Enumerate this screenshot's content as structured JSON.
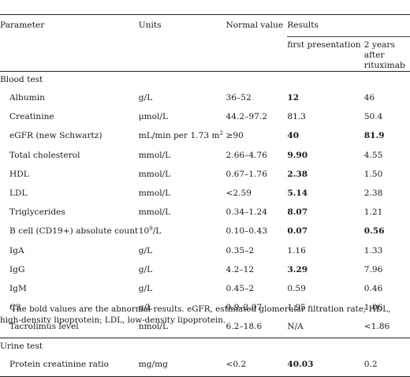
{
  "header": {
    "parameter": "Parameter",
    "units": "Units",
    "normal_value": "Normal value",
    "results": "Results",
    "first_presentation": "first presentation",
    "two_years_after": "2 years after rituximab"
  },
  "sections": [
    {
      "title": "Blood test",
      "rows": [
        {
          "parameter": "Albumin",
          "unit": "g/L",
          "normal": "36–52",
          "first": "12",
          "first_bold": true,
          "after": "46",
          "after_bold": false
        },
        {
          "parameter": "Creatinine",
          "unit": "μmol/L",
          "normal": "44.2–97.2",
          "first": "81.3",
          "first_bold": false,
          "after": "50.4",
          "after_bold": false
        },
        {
          "parameter": "eGFR (new Schwartz)",
          "unit": "mL/min per 1.73 m",
          "unit_sup": "2",
          "normal": "≥90",
          "first": "40",
          "first_bold": true,
          "after": "81.9",
          "after_bold": true
        },
        {
          "parameter": "Total cholesterol",
          "unit": "mmol/L",
          "normal": "2.66–4.76",
          "first": "9.90",
          "first_bold": true,
          "after": "4.55",
          "after_bold": false
        },
        {
          "parameter": "HDL",
          "unit": "mmol/L",
          "normal": "0.67–1.76",
          "first": "2.38",
          "first_bold": true,
          "after": "1.50",
          "after_bold": false
        },
        {
          "parameter": "LDL",
          "unit": "mmol/L",
          "normal": "<2.59",
          "first": "5.14",
          "first_bold": true,
          "after": "2.38",
          "after_bold": false
        },
        {
          "parameter": "Triglycerides",
          "unit": "mmol/L",
          "normal": "0.34–1.24",
          "first": "8.07",
          "first_bold": true,
          "after": "1.21",
          "after_bold": false
        },
        {
          "parameter": "B cell (CD19+) absolute count",
          "unit": "10",
          "unit_sup": "9",
          "unit_tail": "/L",
          "normal": "0.10–0.43",
          "first": "0.07",
          "first_bold": true,
          "after": "0.56",
          "after_bold": true
        },
        {
          "parameter": "IgA",
          "unit": "g/L",
          "normal": "0.35–2",
          "first": "1.16",
          "first_bold": false,
          "after": "1.33",
          "after_bold": false
        },
        {
          "parameter": "IgG",
          "unit": "g/L",
          "normal": "4.2–12",
          "first": "3.29",
          "first_bold": true,
          "after": "7.96",
          "after_bold": false
        },
        {
          "parameter": "IgM",
          "unit": "g/L",
          "normal": "0.45–2",
          "first": "0.59",
          "first_bold": false,
          "after": "0.46",
          "after_bold": false
        },
        {
          "parameter": "C3",
          "unit": "g/L",
          "normal": "0.9–2.07",
          "first": "1.95",
          "first_bold": false,
          "after": "1.06",
          "after_bold": false
        },
        {
          "parameter": "Tacrolimus level",
          "unit": "nmol/L",
          "normal": "6.2–18.6",
          "first": "N/A",
          "first_bold": false,
          "after": "<1.86",
          "after_bold": false
        }
      ]
    },
    {
      "title": "Urine test",
      "rows": [
        {
          "parameter": "Protein creatinine ratio",
          "unit": "mg/mg",
          "normal": "<0.2",
          "first": "40.03",
          "first_bold": true,
          "after": "0.2",
          "after_bold": false
        }
      ]
    }
  ],
  "footnote": "The bold values are the abnormal results. eGFR, estimated glomerular filtration rate; HDL, high-density lipoprotein; LDL, low-density lipoprotein."
}
